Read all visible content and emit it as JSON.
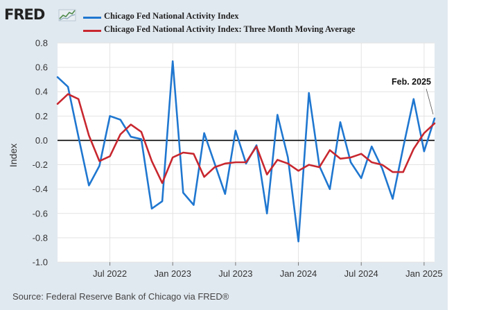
{
  "header": {
    "logo_text": "FRED",
    "logo_mark": "line-chart-icon"
  },
  "footer": {
    "source": "Source: Federal Reserve Bank of Chicago via FRED®"
  },
  "colors": {
    "series_1": "#1f77d0",
    "series_2": "#c8272f",
    "frame": "#e1e9f0",
    "plot_bg": "#ffffff",
    "gridline": "#e3e3e3",
    "zero_line": "#000000"
  },
  "chart_data": {
    "type": "line",
    "title": "",
    "xlabel": "",
    "ylabel": "Index",
    "ylim": [
      -1.0,
      0.8
    ],
    "y_ticks": [
      0.8,
      0.6,
      0.4,
      0.2,
      0.0,
      -0.2,
      -0.4,
      -0.6,
      -0.8,
      -1.0
    ],
    "y_tick_labels": [
      "0.8",
      "0.6",
      "0.4",
      "0.2",
      "0.0",
      "-0.2",
      "-0.4",
      "-0.6",
      "-0.8",
      "-1.0"
    ],
    "x_ticks": [
      "2022-07",
      "2023-01",
      "2023-07",
      "2024-01",
      "2024-07",
      "2025-01"
    ],
    "x_tick_labels": [
      "Jul 2022",
      "Jan 2023",
      "Jul 2023",
      "Jan 2024",
      "Jul 2024",
      "Jan 2025"
    ],
    "xlim": [
      "2022-02",
      "2025-02"
    ],
    "grid": true,
    "legend_position": "top",
    "x": [
      "2022-02",
      "2022-03",
      "2022-04",
      "2022-05",
      "2022-06",
      "2022-07",
      "2022-08",
      "2022-09",
      "2022-10",
      "2022-11",
      "2022-12",
      "2023-01",
      "2023-02",
      "2023-03",
      "2023-04",
      "2023-05",
      "2023-06",
      "2023-07",
      "2023-08",
      "2023-09",
      "2023-10",
      "2023-11",
      "2023-12",
      "2024-01",
      "2024-02",
      "2024-03",
      "2024-04",
      "2024-05",
      "2024-06",
      "2024-07",
      "2024-08",
      "2024-09",
      "2024-10",
      "2024-11",
      "2024-12",
      "2025-01",
      "2025-02"
    ],
    "series": [
      {
        "name": "Chicago Fed National Activity Index",
        "color": "#1f77d0",
        "values": [
          0.52,
          0.44,
          0.03,
          -0.37,
          -0.21,
          0.2,
          0.17,
          0.03,
          0.01,
          -0.56,
          -0.5,
          0.65,
          -0.43,
          -0.53,
          0.06,
          -0.19,
          -0.44,
          0.08,
          -0.19,
          -0.04,
          -0.6,
          0.21,
          -0.14,
          -0.83,
          0.39,
          -0.21,
          -0.4,
          0.15,
          -0.18,
          -0.31,
          -0.05,
          -0.23,
          -0.48,
          -0.06,
          0.34,
          -0.09,
          0.18
        ]
      },
      {
        "name": "Chicago Fed National Activity Index: Three Month Moving Average",
        "color": "#c8272f",
        "values": [
          0.3,
          0.38,
          0.34,
          0.04,
          -0.17,
          -0.13,
          0.05,
          0.13,
          0.07,
          -0.17,
          -0.35,
          -0.14,
          -0.1,
          -0.11,
          -0.3,
          -0.22,
          -0.19,
          -0.18,
          -0.18,
          -0.05,
          -0.28,
          -0.16,
          -0.19,
          -0.25,
          -0.2,
          -0.22,
          -0.08,
          -0.15,
          -0.14,
          -0.11,
          -0.18,
          -0.2,
          -0.26,
          -0.26,
          -0.07,
          0.06,
          0.14
        ]
      }
    ],
    "annotations": [
      {
        "text": "Feb. 2025",
        "x": "2025-02",
        "y": 0.18
      }
    ]
  }
}
